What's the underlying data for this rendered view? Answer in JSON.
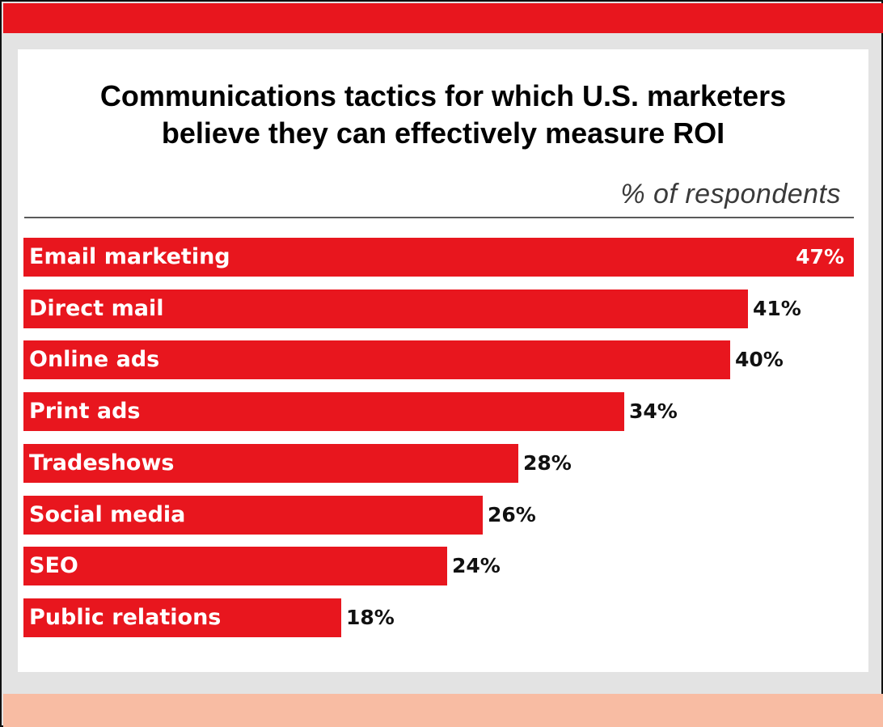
{
  "chart_data": {
    "type": "bar",
    "orientation": "horizontal",
    "title_lines": [
      "Communications tactics for which U.S. marketers",
      "believe they can effectively measure ROI"
    ],
    "unit_label": "% of respondents",
    "categories": [
      "Email marketing",
      "Direct mail",
      "Online ads",
      "Print ads",
      "Tradeshows",
      "Social media",
      "SEO",
      "Public relations"
    ],
    "values": [
      47,
      41,
      40,
      34,
      28,
      26,
      24,
      18
    ],
    "value_labels": [
      "47%",
      "41%",
      "40%",
      "34%",
      "28%",
      "26%",
      "24%",
      "18%"
    ],
    "xlim": [
      0,
      47
    ],
    "grid": false,
    "legend": "none"
  },
  "colors": {
    "bar": "#e8161e",
    "top_band": "#e8161e",
    "bottom_band": "#f8bca3",
    "background": "#e3e3e3",
    "panel": "#ffffff"
  }
}
